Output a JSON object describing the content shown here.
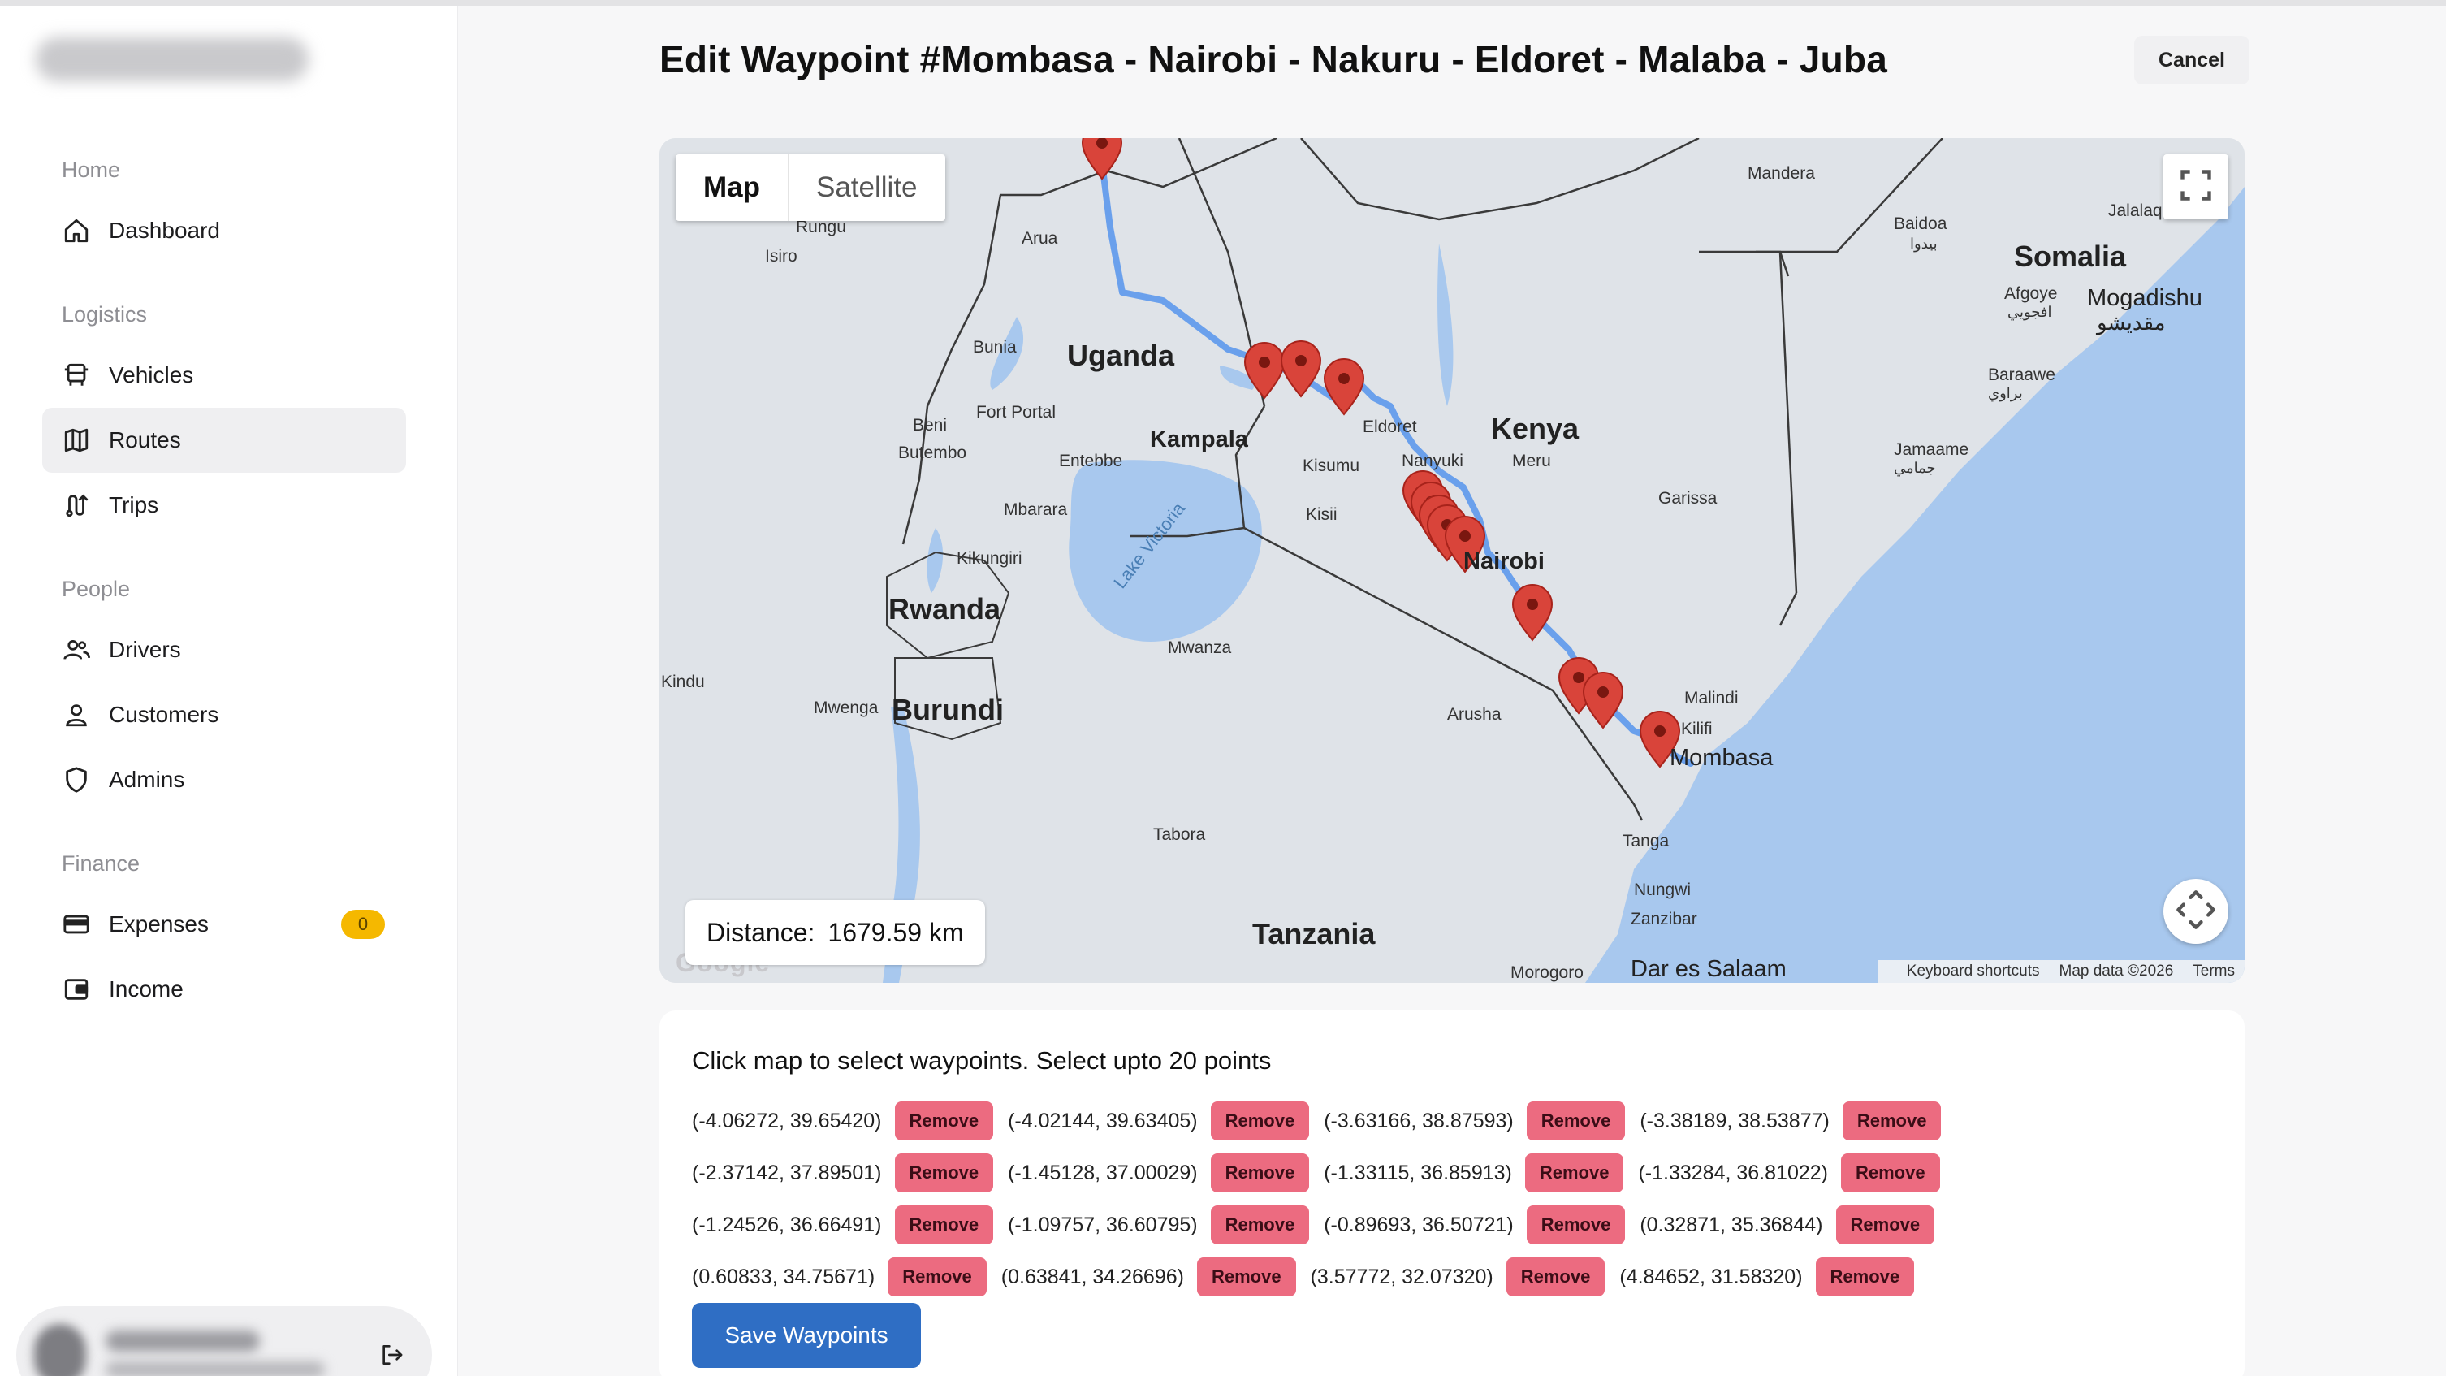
{
  "sidebar": {
    "sections": [
      {
        "title": "Home",
        "items": [
          {
            "label": "Dashboard",
            "icon": "home-icon"
          }
        ]
      },
      {
        "title": "Logistics",
        "items": [
          {
            "label": "Vehicles",
            "icon": "bus-icon"
          },
          {
            "label": "Routes",
            "icon": "map-icon",
            "active": true
          },
          {
            "label": "Trips",
            "icon": "route-icon"
          }
        ]
      },
      {
        "title": "People",
        "items": [
          {
            "label": "Drivers",
            "icon": "users-icon"
          },
          {
            "label": "Customers",
            "icon": "user-icon"
          },
          {
            "label": "Admins",
            "icon": "shield-icon"
          }
        ]
      },
      {
        "title": "Finance",
        "items": [
          {
            "label": "Expenses",
            "icon": "card-icon",
            "badge": "0"
          },
          {
            "label": "Income",
            "icon": "wallet-icon"
          }
        ]
      }
    ]
  },
  "header": {
    "title": "Edit Waypoint #Mombasa - Nairobi - Nakuru - Eldoret - Malaba - Juba",
    "cancel_label": "Cancel"
  },
  "map": {
    "type_map": "Map",
    "type_satellite": "Satellite",
    "distance_label": "Distance:",
    "distance_value": "1679.59 km",
    "footer": {
      "shortcuts": "Keyboard shortcuts",
      "data": "Map data ©2026",
      "terms": "Terms"
    },
    "google": "Google",
    "colors": {
      "water": "#a8c8ee",
      "land": "#dfe3e8",
      "route": "#6aa0ec",
      "marker": "#d9443a"
    },
    "labels": {
      "countries": [
        "Uganda",
        "Kenya",
        "Somalia",
        "Rwanda",
        "Burundi",
        "Tanzania"
      ],
      "cities": [
        "Rungu",
        "Isiro",
        "Arua",
        "Bunia",
        "Fort Portal",
        "Beni",
        "Butembo",
        "Kampala",
        "Entebbe",
        "Mbarara",
        "Kikungiri",
        "Kisumu",
        "Kisii",
        "Eldoret",
        "Nanyuki",
        "Meru",
        "Nairobi",
        "Garissa",
        "Mandera",
        "Baidoa",
        "بيدوا",
        "Jalalaqsi",
        "Afgoye",
        "افجويي",
        "Mogadishu",
        "مقديشو",
        "Baraawe",
        "براوي",
        "Jamaame",
        "جمامي",
        "Mwanza",
        "Arusha",
        "Malindi",
        "Kilifi",
        "Mombasa",
        "Tanga",
        "Nungwi",
        "Zanzibar",
        "Dar es Salaam",
        "Morogoro",
        "Tabora",
        "Mwenga",
        "Kindu",
        "Lake Victoria"
      ]
    }
  },
  "waypoints": {
    "instruction": "Click map to select waypoints. Select upto 20 points",
    "remove_label": "Remove",
    "save_label": "Save Waypoints",
    "points": [
      "(-4.06272, 39.65420)",
      "(-4.02144, 39.63405)",
      "(-3.63166, 38.87593)",
      "(-3.38189, 38.53877)",
      "(-2.37142, 37.89501)",
      "(-1.45128, 37.00029)",
      "(-1.33115, 36.85913)",
      "(-1.33284, 36.81022)",
      "(-1.24526, 36.66491)",
      "(-1.09757, 36.60795)",
      "(-0.89693, 36.50721)",
      "(0.32871, 35.36844)",
      "(0.60833, 34.75671)",
      "(0.63841, 34.26696)",
      "(3.57772, 32.07320)",
      "(4.84652, 31.58320)"
    ]
  }
}
